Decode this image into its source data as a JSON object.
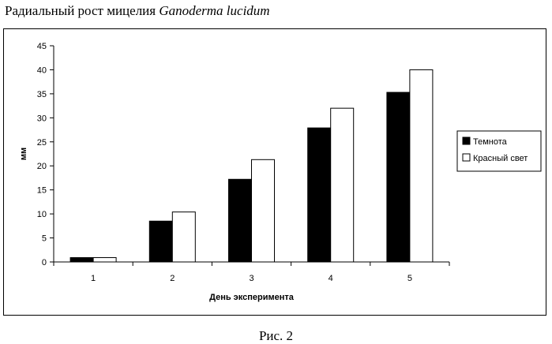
{
  "header": {
    "title_plain": "Радиальный рост мицелия ",
    "title_italic": "Ganoderma lucidum"
  },
  "caption": "Рис. 2",
  "chart_data": {
    "type": "bar",
    "title": "",
    "xlabel": "День эксперимента",
    "ylabel": "мм",
    "categories": [
      "1",
      "2",
      "3",
      "4",
      "5"
    ],
    "ylim": [
      0,
      45
    ],
    "yticks": [
      0,
      5,
      10,
      15,
      20,
      25,
      30,
      35,
      40,
      45
    ],
    "grid": false,
    "legend_position": "right",
    "series": [
      {
        "name": "Темнота",
        "color": "#000000",
        "values": [
          0.9,
          8.5,
          17.2,
          27.9,
          35.3
        ]
      },
      {
        "name": "Красный свет",
        "color": "#ffffff",
        "values": [
          0.9,
          10.4,
          21.3,
          32.0,
          40.0
        ]
      }
    ]
  }
}
